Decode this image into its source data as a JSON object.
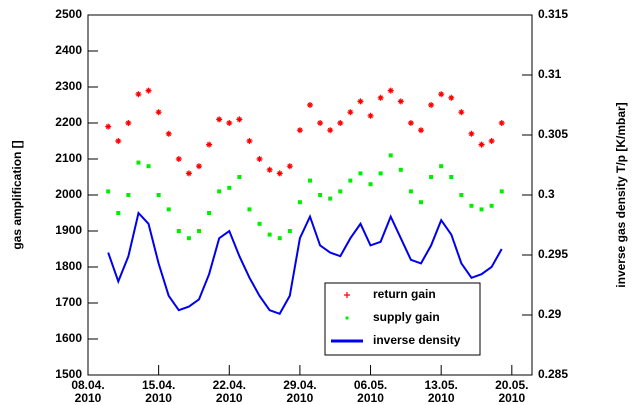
{
  "chart_data": {
    "type": "line",
    "ylabel": "gas amplification []",
    "y2label": "inverse gas density T/p [K/mbar]",
    "x": [
      "2010-04-10",
      "2010-04-11",
      "2010-04-12",
      "2010-04-13",
      "2010-04-14",
      "2010-04-15",
      "2010-04-16",
      "2010-04-17",
      "2010-04-18",
      "2010-04-19",
      "2010-04-20",
      "2010-04-21",
      "2010-04-22",
      "2010-04-23",
      "2010-04-24",
      "2010-04-25",
      "2010-04-26",
      "2010-04-27",
      "2010-04-28",
      "2010-04-29",
      "2010-04-30",
      "2010-05-01",
      "2010-05-02",
      "2010-05-03",
      "2010-05-04",
      "2010-05-05",
      "2010-05-06",
      "2010-05-07",
      "2010-05-08",
      "2010-05-09",
      "2010-05-10",
      "2010-05-11",
      "2010-05-12",
      "2010-05-13",
      "2010-05-14",
      "2010-05-15",
      "2010-05-16",
      "2010-05-17",
      "2010-05-18",
      "2010-05-19"
    ],
    "series": [
      {
        "name": "return gain",
        "color": "#ff0000",
        "style": "star",
        "values": [
          2190,
          2150,
          2200,
          2280,
          2290,
          2230,
          2170,
          2100,
          2060,
          2080,
          2140,
          2210,
          2200,
          2210,
          2150,
          2100,
          2070,
          2060,
          2080,
          2180,
          2250,
          2200,
          2180,
          2200,
          2230,
          2260,
          2220,
          2270,
          2290,
          2260,
          2200,
          2180,
          2250,
          2280,
          2270,
          2230,
          2170,
          2140,
          2150,
          2200
        ]
      },
      {
        "name": "supply gain",
        "color": "#00ee00",
        "style": "dot",
        "values": [
          2010,
          1950,
          2000,
          2090,
          2080,
          2000,
          1960,
          1900,
          1880,
          1900,
          1950,
          2010,
          2020,
          2050,
          1960,
          1920,
          1890,
          1880,
          1900,
          1980,
          2040,
          2000,
          1990,
          2010,
          2040,
          2060,
          2030,
          2060,
          2110,
          2070,
          2010,
          1980,
          2050,
          2080,
          2050,
          2000,
          1970,
          1960,
          1970,
          2010
        ]
      },
      {
        "name": "inverse density",
        "color": "#0000ee",
        "style": "line",
        "axis": "y2",
        "values": [
          0.2952,
          0.2928,
          0.2949,
          0.2985,
          0.2976,
          0.2943,
          0.2916,
          0.2904,
          0.2907,
          0.2913,
          0.2934,
          0.2964,
          0.297,
          0.2949,
          0.2931,
          0.2916,
          0.2904,
          0.2901,
          0.2916,
          0.2964,
          0.2982,
          0.2958,
          0.2952,
          0.2949,
          0.2964,
          0.2976,
          0.2958,
          0.2961,
          0.2982,
          0.2964,
          0.2946,
          0.2943,
          0.2958,
          0.2979,
          0.2967,
          0.2943,
          0.2931,
          0.2934,
          0.294,
          0.2955
        ]
      }
    ],
    "xlim": [
      "2010-04-08",
      "2010-05-22"
    ],
    "xticks": [
      {
        "value": "2010-04-08",
        "label": "08.04.\n2010"
      },
      {
        "value": "2010-04-15",
        "label": "15.04.\n2010"
      },
      {
        "value": "2010-04-22",
        "label": "22.04.\n2010"
      },
      {
        "value": "2010-04-29",
        "label": "29.04.\n2010"
      },
      {
        "value": "2010-05-06",
        "label": "06.05.\n2010"
      },
      {
        "value": "2010-05-13",
        "label": "13.05.\n2010"
      },
      {
        "value": "2010-05-20",
        "label": "20.05.\n2010"
      }
    ],
    "ylim": [
      1500,
      2500
    ],
    "yticks": [
      1500,
      1600,
      1700,
      1800,
      1900,
      2000,
      2100,
      2200,
      2300,
      2400,
      2500
    ],
    "y2lim": [
      0.285,
      0.315
    ],
    "y2ticks": [
      0.285,
      0.29,
      0.295,
      0.3,
      0.305,
      0.31,
      0.315
    ],
    "legend": "lower right"
  }
}
